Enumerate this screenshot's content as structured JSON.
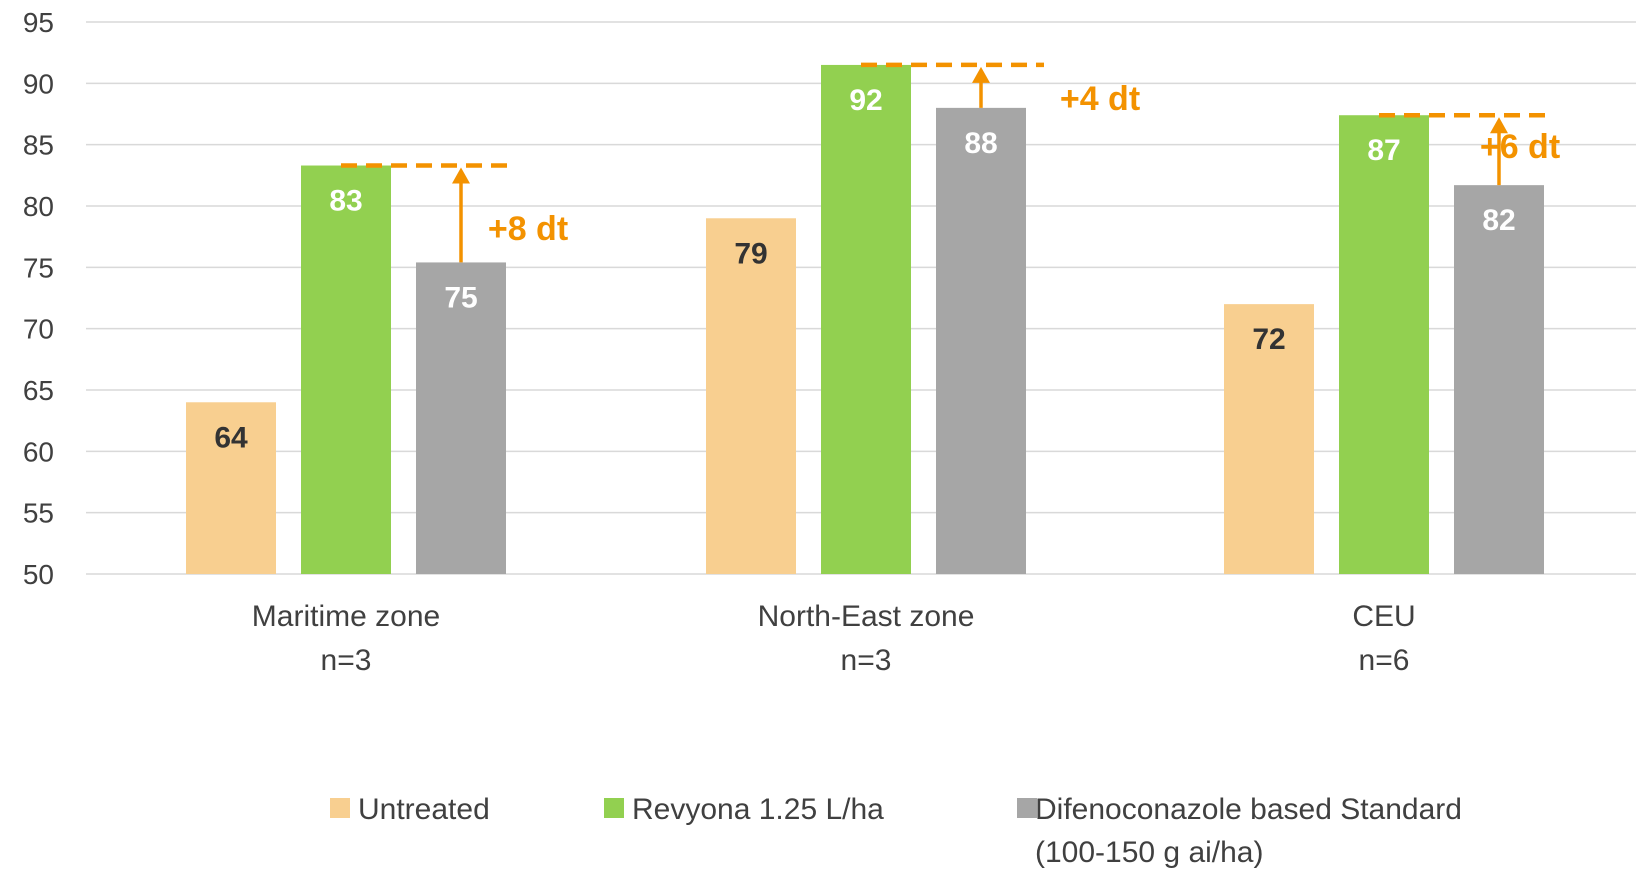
{
  "chart_data": {
    "type": "bar",
    "categories": [
      {
        "name": "Maritime zone",
        "n": "n=3"
      },
      {
        "name": "North-East zone",
        "n": "n=3"
      },
      {
        "name": "CEU",
        "n": "n=6"
      }
    ],
    "series": [
      {
        "name": "Untreated",
        "color": "#F8CF90",
        "values": [
          64,
          79,
          72
        ],
        "labels": [
          "64",
          "79",
          "72"
        ],
        "label_color": "#333333"
      },
      {
        "name": "Revyona 1.25 L/ha",
        "color": "#92D050",
        "values": [
          83.3,
          91.5,
          87.4
        ],
        "labels": [
          "83",
          "92",
          "87"
        ],
        "label_color": "#ffffff"
      },
      {
        "name": "Difenoconazole based Standard",
        "name_line2": "(100-150 g ai/ha)",
        "color": "#A6A6A6",
        "values": [
          75.4,
          88,
          81.7
        ],
        "labels": [
          "75",
          "88",
          "82"
        ],
        "label_color": "#ffffff"
      }
    ],
    "annotations": [
      {
        "text": "+8 dt"
      },
      {
        "text": "+4 dt"
      },
      {
        "text": "+6 dt"
      }
    ],
    "annotation_color": "#F39200",
    "y_ticks": [
      "95",
      "90",
      "85",
      "80",
      "75",
      "70",
      "65",
      "60",
      "55",
      "50"
    ],
    "ylim": [
      50,
      95
    ],
    "grid": true,
    "legend_position": "bottom",
    "title": "",
    "xlabel": "",
    "ylabel": ""
  }
}
